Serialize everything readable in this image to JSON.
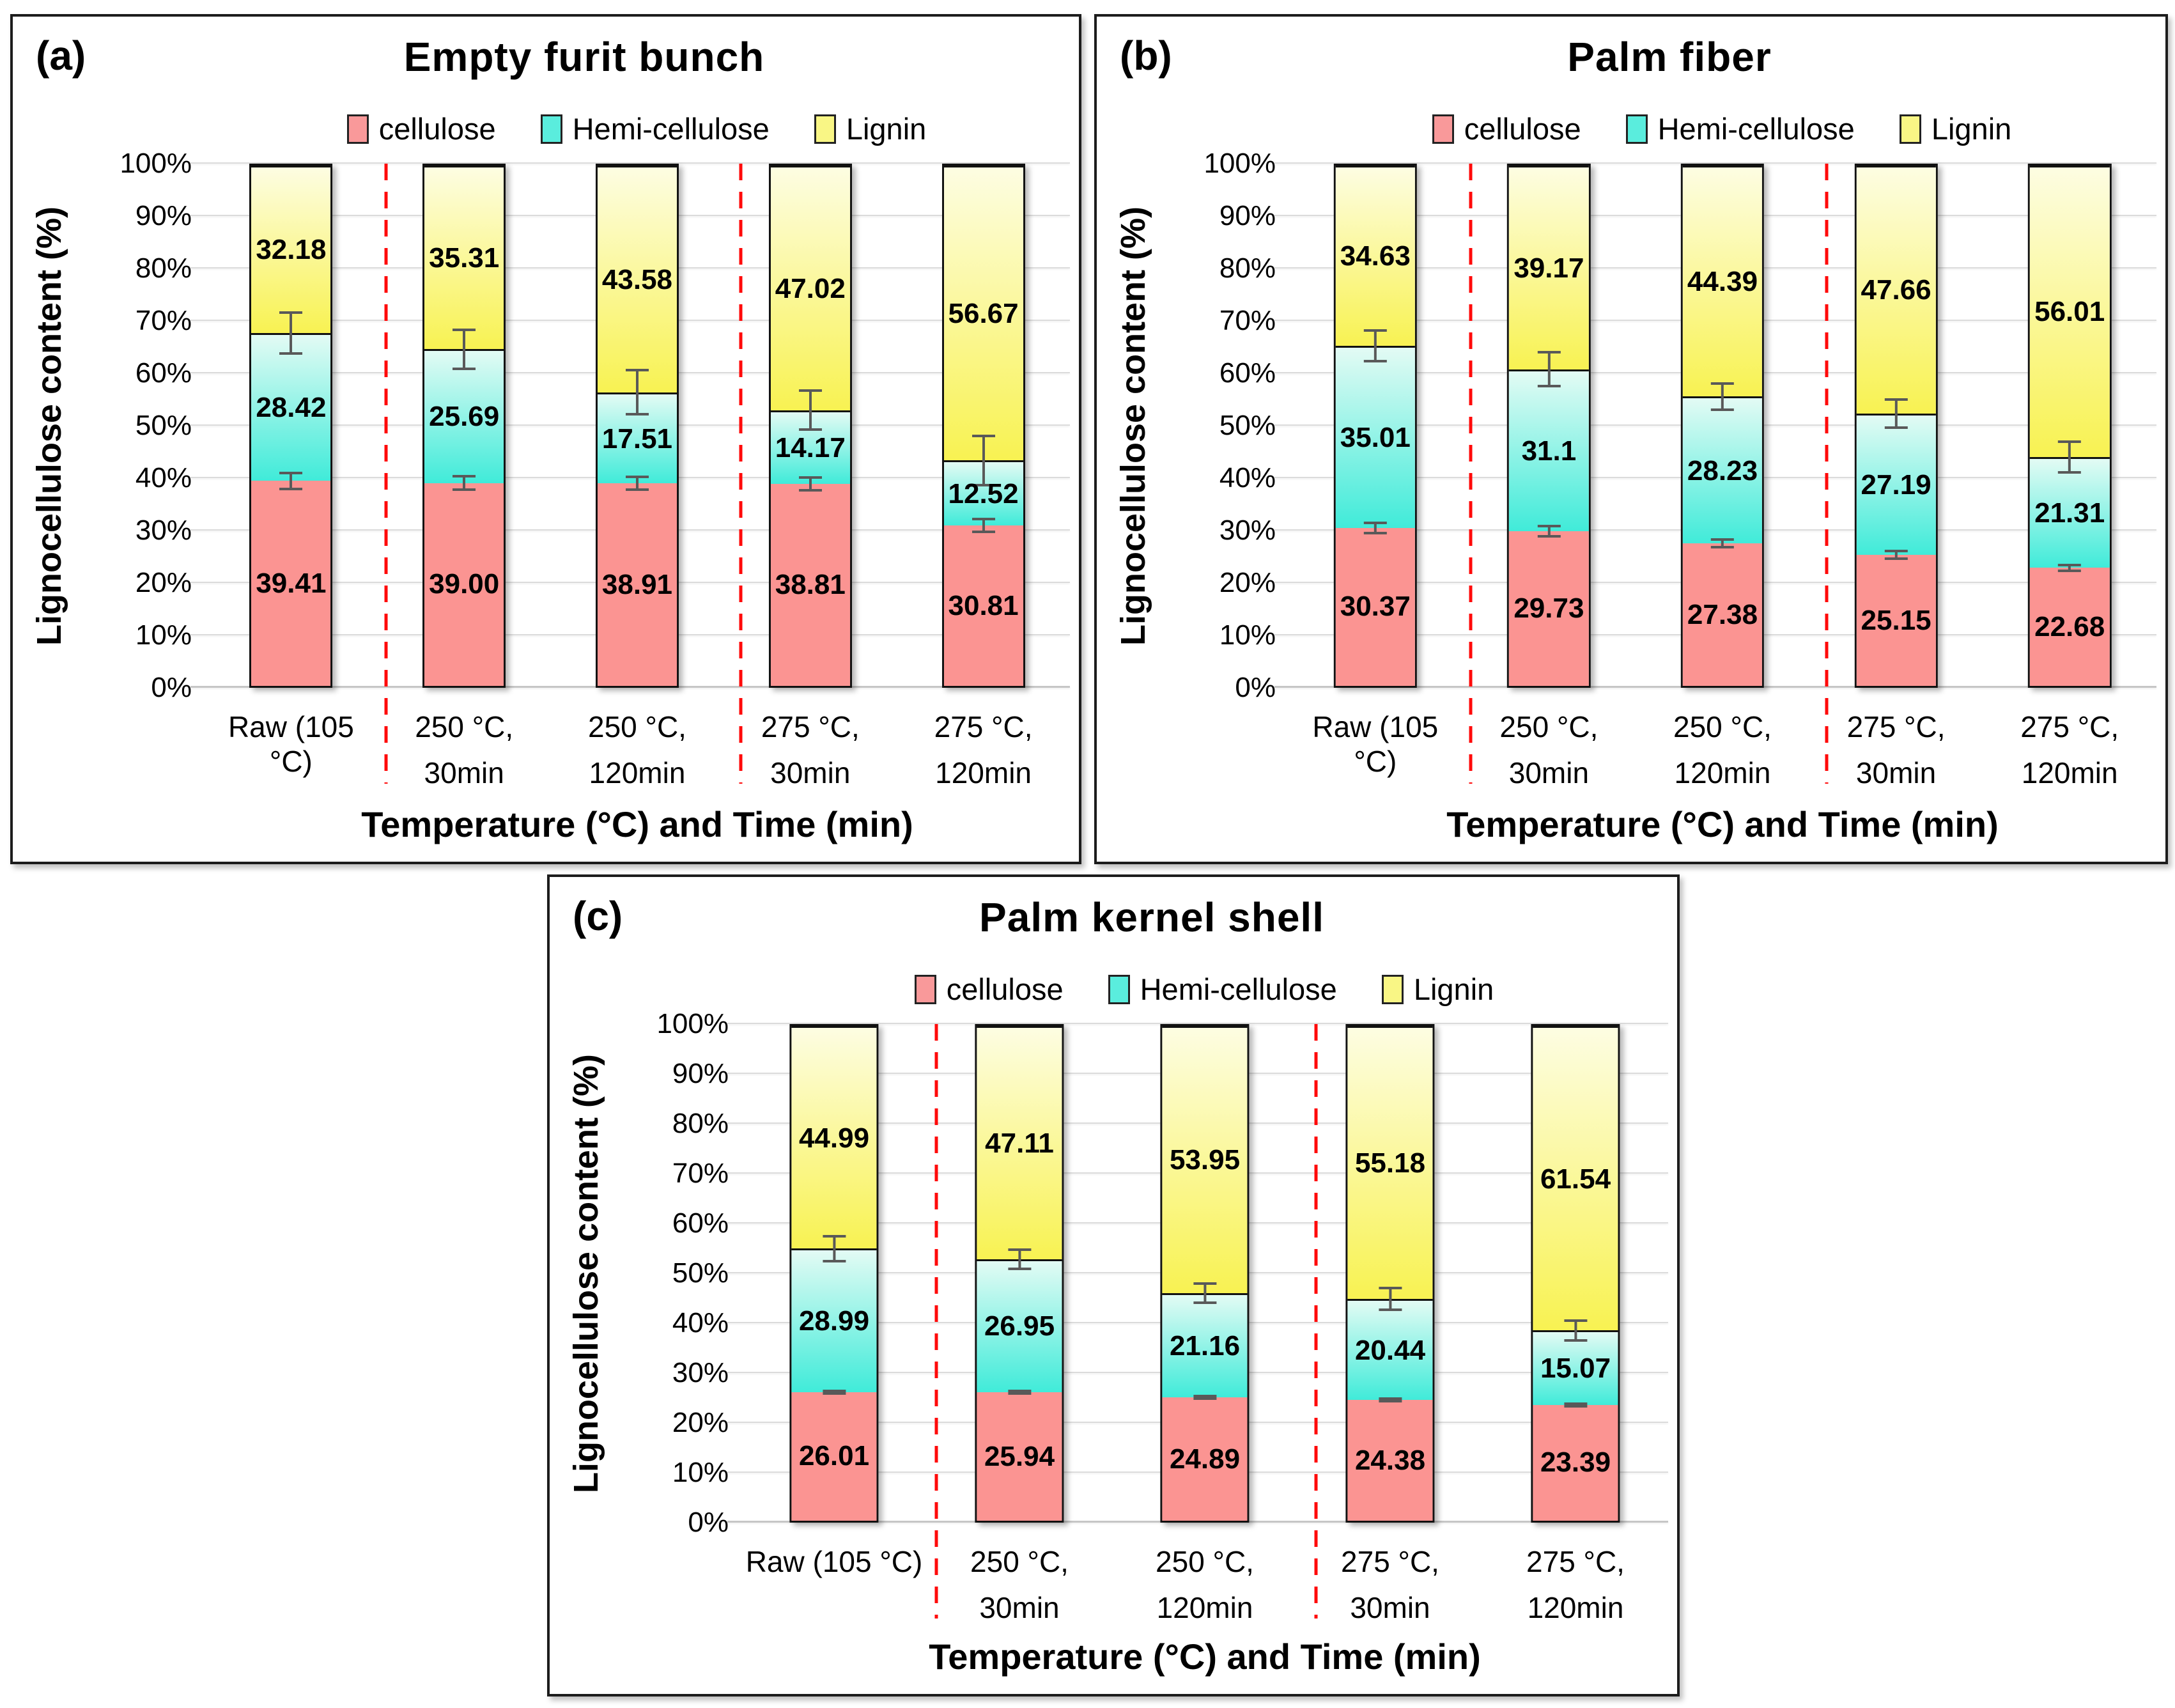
{
  "figure": {
    "ylabel": "Lignocellulose content (%)",
    "xlabel": "Temperature (°C) and Time (min)",
    "yticks": [
      "100%",
      "90%",
      "80%",
      "70%",
      "60%",
      "50%",
      "40%",
      "30%",
      "20%",
      "10%",
      "0%"
    ],
    "legend": {
      "items": [
        {
          "label": "cellulose",
          "swatch_color": "#F9999A"
        },
        {
          "label": "Hemi-cellulose",
          "swatch_color": "#5AEDDD"
        },
        {
          "label": "Lignin",
          "swatch_color": "#F9F685"
        }
      ]
    },
    "colors": {
      "cellulose_fill": "#FB9492",
      "hemicellulose_gradient_top": "#E3FBF4",
      "hemicellulose_gradient_bottom": "#40EBD9",
      "lignin_gradient_top": "#FDFDE2",
      "lignin_gradient_bottom": "#F8F252",
      "divider_red": "#FF0000",
      "error_bar_gray": "#595959"
    }
  },
  "chart_data": [
    {
      "panel": "(a)",
      "title": "Empty furit bunch",
      "type": "bar",
      "stacked": true,
      "ylim": [
        0,
        100
      ],
      "grid": true,
      "legend_position": "top",
      "categories": [
        "Raw (105 °C)",
        "250 °C, 30min",
        "250 °C, 120min",
        "275 °C, 30min",
        "275 °C, 120min"
      ],
      "category_lines": [
        [
          "Raw (105 °C)",
          ""
        ],
        [
          "250 °C,",
          "30min"
        ],
        [
          "250 °C,",
          "120min"
        ],
        [
          "275 °C,",
          "30min"
        ],
        [
          "275 °C,",
          "120min"
        ]
      ],
      "series": [
        {
          "name": "cellulose",
          "values": [
            39.41,
            39.0,
            38.91,
            38.81,
            30.81
          ],
          "labels": [
            "39.41",
            "39.00",
            "38.91",
            "38.81",
            "30.81"
          ]
        },
        {
          "name": "Hemi-cellulose",
          "values": [
            28.42,
            25.69,
            17.51,
            14.17,
            12.52
          ],
          "labels": [
            "28.42",
            "25.69",
            "17.51",
            "14.17",
            "12.52"
          ]
        },
        {
          "name": "Lignin",
          "values": [
            32.18,
            35.31,
            43.58,
            47.02,
            56.67
          ],
          "labels": [
            "32.18",
            "35.31",
            "43.58",
            "47.02",
            "56.67"
          ]
        }
      ],
      "error_bars_est": {
        "cellulose_top": [
          1.8,
          1.5,
          1.5,
          1.5,
          1.5
        ],
        "hemicellulose_top": [
          4.2,
          4.0,
          4.5,
          4.0,
          5.0
        ]
      },
      "dividers_x_percent": [
        21,
        62
      ]
    },
    {
      "panel": "(b)",
      "title": "Palm fiber",
      "type": "bar",
      "stacked": true,
      "ylim": [
        0,
        100
      ],
      "grid": true,
      "legend_position": "top",
      "categories": [
        "Raw (105 °C)",
        "250 °C, 30min",
        "250 °C, 120min",
        "275 °C, 30min",
        "275 °C, 120min"
      ],
      "category_lines": [
        [
          "Raw (105 °C)",
          ""
        ],
        [
          "250 °C,",
          "30min"
        ],
        [
          "250 °C,",
          "120min"
        ],
        [
          "275 °C,",
          "30min"
        ],
        [
          "275 °C,",
          "120min"
        ]
      ],
      "series": [
        {
          "name": "cellulose",
          "values": [
            30.37,
            29.73,
            27.38,
            25.15,
            22.68
          ],
          "labels": [
            "30.37",
            "29.73",
            "27.38",
            "25.15",
            "22.68"
          ]
        },
        {
          "name": "Hemi-cellulose",
          "values": [
            35.01,
            31.1,
            28.23,
            27.19,
            21.31
          ],
          "labels": [
            "35.01",
            "31.1",
            "28.23",
            "27.19",
            "21.31"
          ]
        },
        {
          "name": "Lignin",
          "values": [
            34.63,
            39.17,
            44.39,
            47.66,
            56.01
          ],
          "labels": [
            "34.63",
            "39.17",
            "44.39",
            "47.66",
            "56.01"
          ]
        }
      ],
      "error_bars_est": {
        "cellulose_top": [
          1.2,
          1.2,
          1.0,
          1.0,
          0.8
        ],
        "hemicellulose_top": [
          3.2,
          3.5,
          2.8,
          3.0,
          3.2
        ]
      },
      "dividers_x_percent": [
        21,
        62
      ]
    },
    {
      "panel": "(c)",
      "title": "Palm kernel shell",
      "type": "bar",
      "stacked": true,
      "ylim": [
        0,
        100
      ],
      "grid": true,
      "legend_position": "top",
      "categories": [
        "Raw (105 °C)",
        "250 °C, 30min",
        "250 °C, 120min",
        "275 °C, 30min",
        "275 °C, 120min"
      ],
      "category_lines": [
        [
          "Raw (105 °C)",
          ""
        ],
        [
          "250 °C,",
          "30min"
        ],
        [
          "250 °C,",
          "120min"
        ],
        [
          "275 °C,",
          "30min"
        ],
        [
          "275 °C,",
          "120min"
        ]
      ],
      "series": [
        {
          "name": "cellulose",
          "values": [
            26.01,
            25.94,
            24.89,
            24.38,
            23.39
          ],
          "labels": [
            "26.01",
            "25.94",
            "24.89",
            "24.38",
            "23.39"
          ]
        },
        {
          "name": "Hemi-cellulose",
          "values": [
            28.99,
            26.95,
            21.16,
            20.44,
            15.07
          ],
          "labels": [
            "28.99",
            "26.95",
            "21.16",
            "20.44",
            "15.07"
          ]
        },
        {
          "name": "Lignin",
          "values": [
            44.99,
            47.11,
            53.95,
            55.18,
            61.54
          ],
          "labels": [
            "44.99",
            "47.11",
            "53.95",
            "55.18",
            "61.54"
          ]
        }
      ],
      "error_bars_est": {
        "cellulose_top": [
          0.5,
          0.5,
          0.5,
          0.5,
          0.5
        ],
        "hemicellulose_top": [
          2.8,
          2.2,
          2.2,
          2.5,
          2.3
        ]
      },
      "dividers_x_percent": [
        21,
        62
      ]
    }
  ]
}
